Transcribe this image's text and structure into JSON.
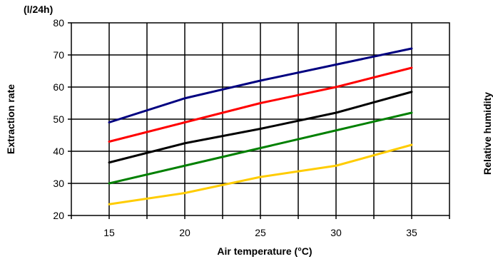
{
  "chart_data": {
    "type": "line",
    "unit_label": "(l/24h)",
    "ylabel": "Extraction rate",
    "xlabel": "Air temperature (°C)",
    "right_label": "Relative humidity",
    "x": [
      15,
      20,
      25,
      30,
      35
    ],
    "xlim": [
      12.5,
      37.5
    ],
    "ylim": [
      20,
      80
    ],
    "y_ticks": [
      20,
      30,
      40,
      50,
      60,
      70,
      80
    ],
    "grid": true,
    "legend": "none",
    "series": [
      {
        "color": "#000080",
        "values": [
          49,
          56.5,
          62,
          67,
          72
        ]
      },
      {
        "color": "#ff0000",
        "values": [
          43,
          49,
          55,
          60,
          66
        ]
      },
      {
        "color": "#000000",
        "values": [
          36.5,
          42.5,
          47,
          52,
          58.5
        ]
      },
      {
        "color": "#008000",
        "values": [
          30,
          35.5,
          41,
          46.5,
          52
        ]
      },
      {
        "color": "#ffcc00",
        "values": [
          23.5,
          27,
          32,
          35.5,
          42
        ]
      }
    ]
  }
}
